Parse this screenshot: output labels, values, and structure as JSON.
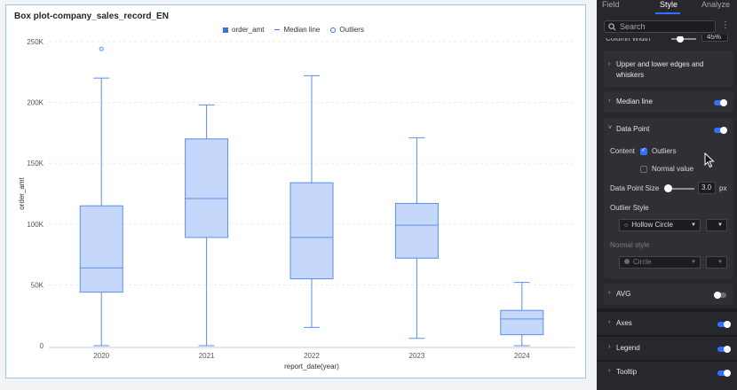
{
  "chart_data": {
    "type": "boxplot",
    "title": "Box plot-company_sales_record_EN",
    "xlabel": "report_date(year)",
    "ylabel": "order_amt",
    "ylim": [
      0,
      250000
    ],
    "y_ticks": [
      0,
      50000,
      100000,
      150000,
      200000,
      250000
    ],
    "y_tick_labels": [
      "0",
      "50K",
      "100K",
      "150K",
      "200K",
      "250K"
    ],
    "legend": [
      "order_amt",
      "Median line",
      "Outliers"
    ],
    "legend_position": "top-center",
    "grid": true,
    "categories": [
      "2020",
      "2021",
      "2022",
      "2023",
      "2024"
    ],
    "boxes": [
      {
        "min": 0,
        "q1": 44000,
        "median": 64000,
        "q3": 115000,
        "max": 220000
      },
      {
        "min": 0,
        "q1": 89000,
        "median": 121000,
        "q3": 170000,
        "max": 198000
      },
      {
        "min": 15000,
        "q1": 55000,
        "median": 89000,
        "q3": 134000,
        "max": 222000
      },
      {
        "min": 6000,
        "q1": 72000,
        "median": 99000,
        "q3": 117000,
        "max": 171000
      },
      {
        "min": 0,
        "q1": 9000,
        "median": 22000,
        "q3": 29000,
        "max": 52000
      }
    ],
    "outliers": [
      {
        "category": "2020",
        "value": 244000
      }
    ],
    "colors": {
      "box_fill": "#c5d8fb",
      "box_stroke": "#5b8ee6",
      "grid": "#e3e6eb"
    }
  },
  "panel": {
    "tabs": [
      "Field",
      "Style",
      "Analyze"
    ],
    "active_tab": "Style",
    "search_placeholder": "Search",
    "cut_label": "Column Width",
    "cut_value": "45%",
    "sections": {
      "edges": "Upper and lower edges and",
      "edges2": "whiskers",
      "median": "Median line",
      "data_point": "Data Point",
      "avg": "AVG",
      "axes": "Axes",
      "legend": "Legend",
      "tooltip": "Tooltip"
    },
    "content_label": "Content",
    "outliers_label": "Outliers",
    "normal_value_label": "Normal value",
    "size_label": "Data Point Size",
    "size_value": "3.0",
    "size_unit": "px",
    "outlier_style_label": "Outlier Style",
    "outlier_style_value": "Hollow Circle",
    "normal_style_label": "Normal style",
    "normal_style_value": "Circle"
  }
}
